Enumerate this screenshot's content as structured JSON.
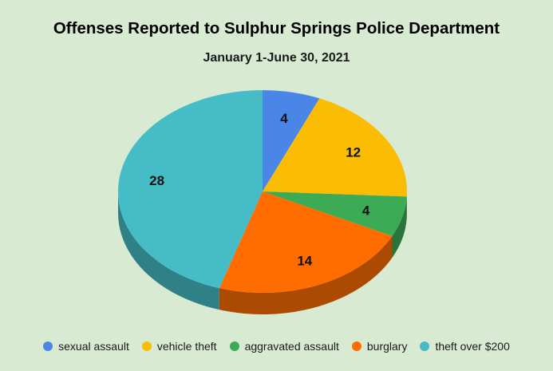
{
  "chart_data": {
    "type": "pie",
    "title": "Offenses Reported to Sulphur Springs Police Department",
    "subtitle": "January 1-June 30, 2021",
    "slices": [
      {
        "label": "sexual assault",
        "value": 4,
        "color": "#4a86e8"
      },
      {
        "label": "vehicle theft",
        "value": 12,
        "color": "#fbbc04"
      },
      {
        "label": "aggravated assault",
        "value": 4,
        "color": "#3daa55"
      },
      {
        "label": "burglary",
        "value": 14,
        "color": "#ff6d01"
      },
      {
        "label": "theft over $200",
        "value": 28,
        "color": "#46bdc6"
      }
    ],
    "legend_position": "bottom",
    "style": "3d"
  }
}
